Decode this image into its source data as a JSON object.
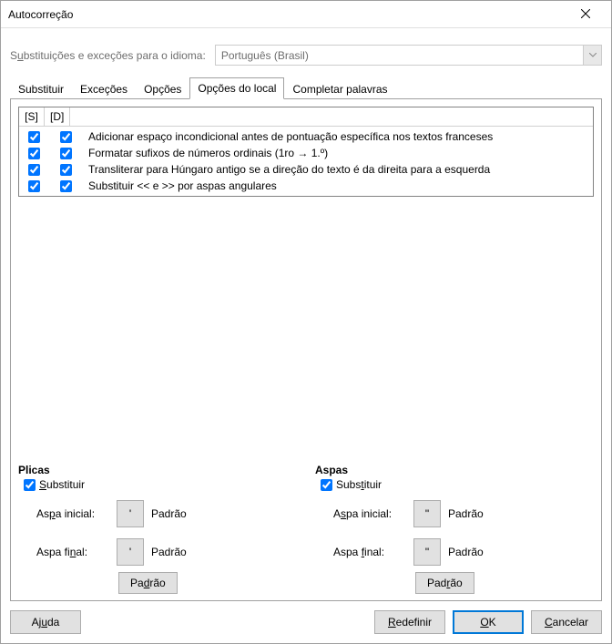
{
  "window": {
    "title": "Autocorreção"
  },
  "language": {
    "label_pre": "S",
    "label_accel": "u",
    "label_post": "bstituições e exceções para o idioma:",
    "value": "Português (Brasil)"
  },
  "tabs": {
    "items": [
      {
        "label": "Substituir"
      },
      {
        "label": "Exceções"
      },
      {
        "label": "Opções"
      },
      {
        "label": "Opções do local"
      },
      {
        "label": "Completar palavras"
      }
    ],
    "active_index": 3
  },
  "options_table": {
    "headers": {
      "s": "[S]",
      "d": "[D]"
    },
    "rows": [
      {
        "s": true,
        "d": true,
        "text": "Adicionar espaço incondicional antes de pontuação específica nos textos franceses"
      },
      {
        "s": true,
        "d": true,
        "text": "Formatar sufixos de números ordinais (1ro → 1.º)"
      },
      {
        "s": true,
        "d": true,
        "text": "Transliterar para Húngaro antigo se a direção do texto é da direita para a esquerda"
      },
      {
        "s": true,
        "d": true,
        "text": "Substituir << e >> por aspas angulares"
      }
    ]
  },
  "plicas": {
    "title": "Plicas",
    "replace_checked": true,
    "replace_pre": "",
    "replace_accel": "S",
    "replace_post": "ubstituir",
    "initial_label_pre": "As",
    "initial_label_accel": "p",
    "initial_label_post": "a inicial:",
    "initial_char": "'",
    "initial_std": "Padrão",
    "final_label_pre": "Aspa fi",
    "final_label_accel": "n",
    "final_label_post": "al:",
    "final_char": "'",
    "final_std": "Padrão",
    "default_btn_pre": "Pa",
    "default_btn_accel": "d",
    "default_btn_post": "rão"
  },
  "aspas": {
    "title": "Aspas",
    "replace_checked": true,
    "replace_pre": "Subs",
    "replace_accel": "t",
    "replace_post": "ituir",
    "initial_label_pre": "A",
    "initial_label_accel": "s",
    "initial_label_post": "pa inicial:",
    "initial_char": "\"",
    "initial_std": "Padrão",
    "final_label_pre": "Aspa ",
    "final_label_accel": "f",
    "final_label_post": "inal:",
    "final_char": "\"",
    "final_std": "Padrão",
    "default_btn_pre": "Pad",
    "default_btn_accel": "r",
    "default_btn_post": "ão"
  },
  "footer": {
    "help_pre": "Aj",
    "help_accel": "u",
    "help_post": "da",
    "reset_pre": "",
    "reset_accel": "R",
    "reset_post": "edefinir",
    "ok_pre": "",
    "ok_accel": "O",
    "ok_post": "K",
    "cancel_pre": "",
    "cancel_accel": "C",
    "cancel_post": "ancelar"
  }
}
